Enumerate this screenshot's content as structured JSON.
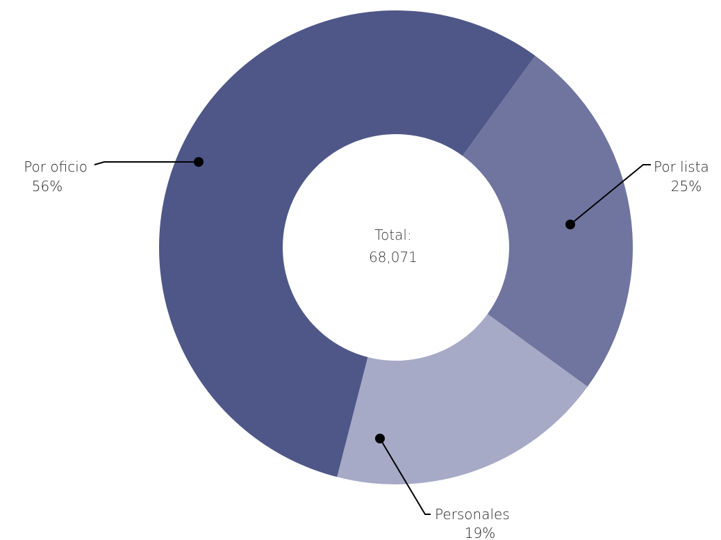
{
  "chart_data": {
    "type": "pie",
    "variant": "donut",
    "total_label": "Total:",
    "total_value": "68,071",
    "slices": [
      {
        "label": "Por oficio",
        "percent_label": "56%",
        "value": 56,
        "color": "#4f5788"
      },
      {
        "label": "Por lista",
        "percent_label": "25%",
        "value": 25,
        "color": "#70759f"
      },
      {
        "label": "Personales",
        "percent_label": "19%",
        "value": 19,
        "color": "#a7aac6"
      }
    ],
    "legend": "none",
    "label_style": "leader-lines"
  }
}
